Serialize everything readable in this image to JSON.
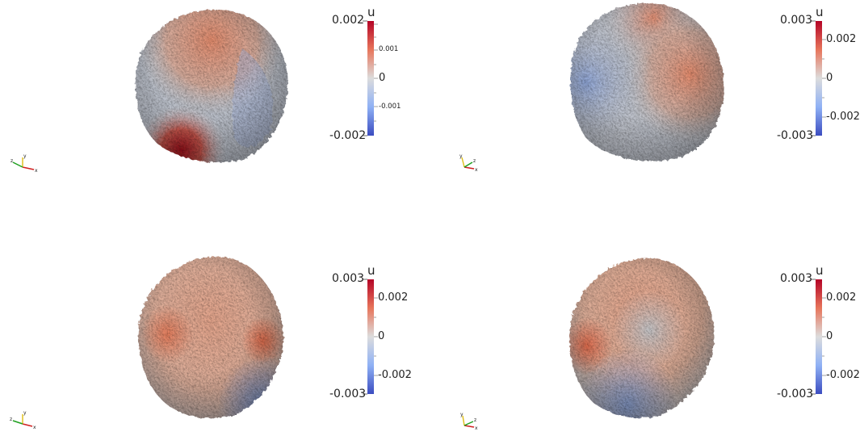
{
  "colormap": {
    "low": "#3b4cc0",
    "mid": "#dddddd",
    "high": "#b40426"
  },
  "panels": [
    {
      "name": "top-left",
      "colorbar": {
        "title": "u",
        "max_label": "0.002",
        "min_label": "-0.002",
        "range": [
          -0.002,
          0.002
        ],
        "ticks": [
          {
            "value": 0.001,
            "label": "0.001"
          },
          {
            "value": 0,
            "label": "0"
          },
          {
            "value": -0.001,
            "label": "-0.001"
          }
        ],
        "small_tick_labels": true
      },
      "axes_triad": {
        "x": "x",
        "y": "y",
        "z": "z"
      }
    },
    {
      "name": "top-right",
      "colorbar": {
        "title": "u",
        "max_label": "0.003",
        "min_label": "-0.003",
        "range": [
          -0.003,
          0.003
        ],
        "ticks": [
          {
            "value": 0.002,
            "label": "0.002"
          },
          {
            "value": 0,
            "label": "0"
          },
          {
            "value": -0.002,
            "label": "-0.002"
          }
        ],
        "small_tick_labels": false
      },
      "axes_triad": {
        "x": "x",
        "y": "y",
        "z": "z"
      }
    },
    {
      "name": "bottom-left",
      "colorbar": {
        "title": "u",
        "max_label": "0.003",
        "min_label": "-0.003",
        "range": [
          -0.003,
          0.003
        ],
        "ticks": [
          {
            "value": 0.002,
            "label": "0.002"
          },
          {
            "value": 0,
            "label": "0"
          },
          {
            "value": -0.002,
            "label": "-0.002"
          }
        ],
        "small_tick_labels": false
      },
      "axes_triad": {
        "x": "x",
        "y": "y",
        "z": "z"
      }
    },
    {
      "name": "bottom-right",
      "colorbar": {
        "title": "u",
        "max_label": "0.003",
        "min_label": "-0.003",
        "range": [
          -0.003,
          0.003
        ],
        "ticks": [
          {
            "value": 0.002,
            "label": "0.002"
          },
          {
            "value": 0,
            "label": "0"
          },
          {
            "value": -0.002,
            "label": "-0.002"
          }
        ],
        "small_tick_labels": false
      },
      "axes_triad": {
        "x": "x",
        "y": "y",
        "z": "z"
      }
    }
  ]
}
